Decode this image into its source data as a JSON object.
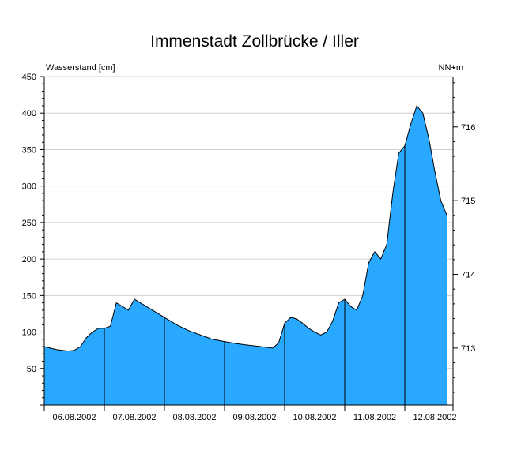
{
  "chart_data": {
    "type": "area",
    "title": "Immenstadt Zollbrücke / Iller",
    "ylabel_left": "Wasserstand [cm]",
    "ylabel_right": "NN+m",
    "ylim": [
      0,
      450
    ],
    "yticks_left": [
      50,
      100,
      150,
      200,
      250,
      300,
      350,
      400,
      450
    ],
    "yticks_right": [
      {
        "label": "713",
        "cm": 78
      },
      {
        "label": "714",
        "cm": 179
      },
      {
        "label": "715",
        "cm": 280
      },
      {
        "label": "716",
        "cm": 381
      }
    ],
    "x_domain": [
      "06.08.2002",
      "13.08.2002"
    ],
    "xtick_labels": [
      "06.08.2002",
      "07.08.2002",
      "08.08.2002",
      "09.08.2002",
      "10.08.2002",
      "11.08.2002",
      "12.08.2002"
    ],
    "grid": true,
    "fill_color": "#29a8ff",
    "series": [
      {
        "x": [
          0,
          0.1,
          0.2,
          0.3,
          0.4,
          0.5,
          0.6,
          0.7,
          0.8,
          0.9,
          1.0,
          1.1,
          1.2,
          1.3,
          1.4,
          1.5,
          1.6,
          1.7,
          1.8,
          1.9,
          2.0,
          2.2,
          2.4,
          2.6,
          2.8,
          3.0,
          3.2,
          3.4,
          3.6,
          3.8,
          3.9,
          4.0,
          4.1,
          4.2,
          4.3,
          4.4,
          4.5,
          4.6,
          4.7,
          4.8,
          4.9,
          5.0,
          5.1,
          5.2,
          5.3,
          5.4,
          5.5,
          5.6,
          5.7,
          5.8,
          5.9,
          6.0,
          6.1,
          6.2,
          6.3,
          6.4,
          6.5,
          6.6,
          6.7
        ],
        "y": [
          80,
          78,
          76,
          75,
          74,
          75,
          80,
          92,
          100,
          105,
          105,
          108,
          140,
          135,
          130,
          145,
          140,
          135,
          130,
          125,
          120,
          110,
          102,
          96,
          90,
          87,
          84,
          82,
          80,
          78,
          85,
          112,
          120,
          118,
          112,
          105,
          100,
          96,
          100,
          115,
          140,
          145,
          135,
          130,
          150,
          195,
          210,
          200,
          220,
          290,
          345,
          355,
          385,
          410,
          400,
          365,
          320,
          280,
          260
        ]
      }
    ]
  }
}
